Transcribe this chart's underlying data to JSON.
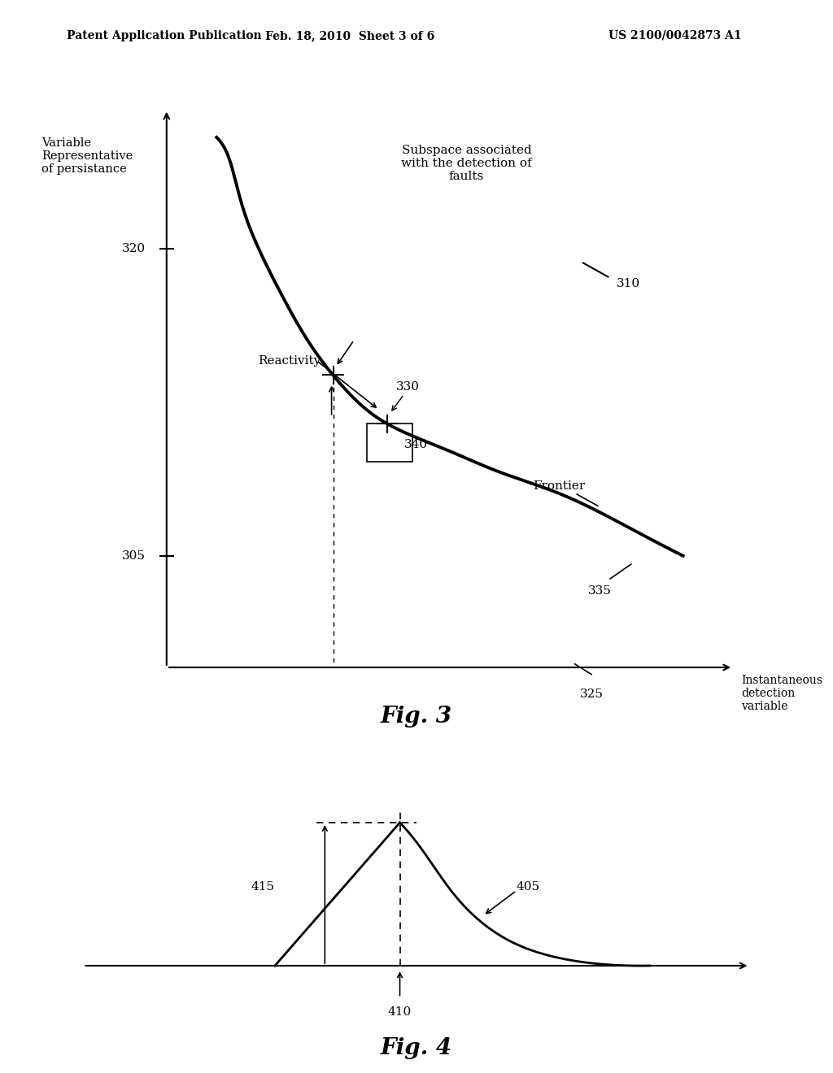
{
  "bg_color": "#ffffff",
  "header_left": "Patent Application Publication",
  "header_center": "Feb. 18, 2010  Sheet 3 of 6",
  "header_right": "US 2100/0042873 A1",
  "fig3_title": "Fig. 3",
  "fig4_title": "Fig. 4",
  "label_320": "320",
  "label_305": "305",
  "label_325": "325",
  "label_310": "310",
  "label_330": "330",
  "label_335": "335",
  "label_340": "340",
  "label_reactivity": "Reactivity",
  "label_frontier": "Frontier",
  "label_subspace": "Subspace associated\nwith the detection of\nfaults",
  "label_var_persist": "Variable\nRepresentative\nof persistance",
  "label_instant_detect": "Instantaneous\ndetection\nvariable",
  "label_410": "410",
  "label_415": "415",
  "label_405": "405"
}
